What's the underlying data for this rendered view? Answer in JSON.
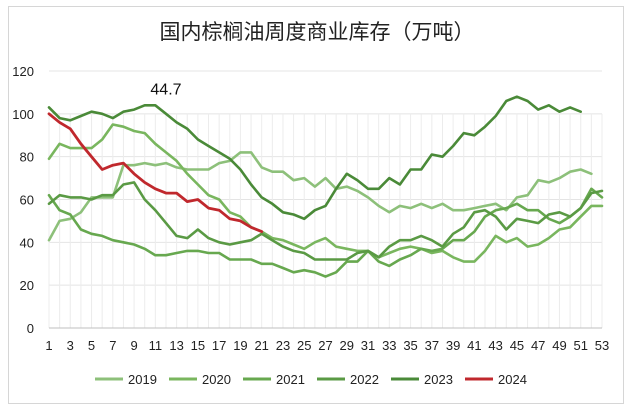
{
  "chart_data": {
    "type": "line",
    "title": "国内棕榈油周度商业库存（万吨）",
    "xlabel": "",
    "ylabel": "",
    "ylim": [
      0,
      120
    ],
    "yticks": [
      0,
      20,
      40,
      60,
      80,
      100,
      120
    ],
    "xlim": [
      1,
      53
    ],
    "xticks": [
      1,
      3,
      5,
      7,
      9,
      11,
      13,
      15,
      17,
      19,
      21,
      23,
      25,
      27,
      29,
      31,
      33,
      35,
      37,
      39,
      41,
      43,
      45,
      47,
      49,
      51,
      53
    ],
    "annotation": {
      "text": "44.7",
      "x": 12,
      "y": 109
    },
    "legend_position": "bottom",
    "series": [
      {
        "name": "2019",
        "color": "#8dc07a",
        "values": [
          41,
          50,
          51,
          54,
          61,
          61,
          61,
          76,
          76,
          77,
          76,
          77,
          75,
          74,
          74,
          74,
          77,
          78,
          82,
          82,
          75,
          73,
          73,
          69,
          70,
          66,
          70,
          65,
          66,
          64,
          61,
          57,
          54,
          57,
          56,
          58,
          56,
          58,
          55,
          55,
          56,
          57,
          58,
          55,
          61,
          62,
          69,
          68,
          70,
          73,
          74,
          72
        ]
      },
      {
        "name": "2020",
        "color": "#79b65e",
        "values": [
          79,
          86,
          84,
          84,
          84,
          88,
          95,
          94,
          92,
          91,
          86,
          82,
          78,
          72,
          67,
          62,
          60,
          54,
          52,
          47,
          45,
          42,
          41,
          39,
          37,
          40,
          42,
          38,
          37,
          36,
          36,
          33,
          35,
          37,
          38,
          37,
          35,
          36,
          33,
          31,
          31,
          36,
          43,
          40,
          42,
          38,
          39,
          42,
          46,
          47,
          52,
          57,
          57
        ]
      },
      {
        "name": "2021",
        "color": "#67a84f",
        "values": [
          62,
          55,
          53,
          46,
          44,
          43,
          41,
          40,
          39,
          37,
          34,
          34,
          35,
          36,
          36,
          35,
          35,
          32,
          32,
          32,
          30,
          30,
          28,
          26,
          27,
          26,
          24,
          26,
          31,
          31,
          36,
          31,
          29,
          32,
          34,
          37,
          36,
          37,
          41,
          41,
          45,
          52,
          55,
          56,
          58,
          55,
          55,
          51,
          49,
          52,
          56,
          65,
          61
        ]
      },
      {
        "name": "2022",
        "color": "#5a9a44",
        "values": [
          58,
          62,
          61,
          61,
          60,
          62,
          62,
          67,
          68,
          60,
          55,
          49,
          43,
          42,
          46,
          42,
          40,
          39,
          40,
          41,
          44,
          41,
          38,
          36,
          35,
          32,
          32,
          32,
          32,
          35,
          36,
          33,
          38,
          41,
          41,
          43,
          41,
          38,
          44,
          47,
          54,
          55,
          52,
          46,
          51,
          50,
          49,
          53,
          54,
          52,
          56,
          63,
          64
        ]
      },
      {
        "name": "2023",
        "color": "#4a8a38",
        "values": [
          103,
          98,
          97,
          99,
          101,
          100,
          98,
          101,
          102,
          104,
          104,
          100,
          96,
          93,
          88,
          85,
          82,
          79,
          74,
          67,
          61,
          58,
          54,
          53,
          51,
          55,
          57,
          65,
          72,
          69,
          65,
          65,
          70,
          67,
          74,
          74,
          81,
          80,
          85,
          91,
          90,
          94,
          99,
          106,
          108,
          106,
          102,
          104,
          101,
          103,
          101
        ]
      },
      {
        "name": "2024",
        "color": "#c0282d",
        "values": [
          100,
          96,
          93,
          86,
          80,
          74,
          76,
          77,
          72,
          68,
          65,
          63,
          63,
          59,
          60,
          56,
          55,
          51,
          50,
          47,
          45
        ]
      }
    ]
  }
}
